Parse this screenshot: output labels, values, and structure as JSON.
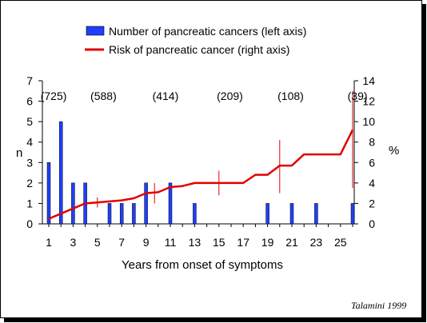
{
  "chart_data": {
    "type": "bar",
    "legend": {
      "position": "top-center",
      "bar_label": "Number of pancreatic cancers (left axis)",
      "line_label": "Risk of pancreatic cancer (right axis)"
    },
    "xlabel": "Years from onset of symptoms",
    "ylabel_left": "n",
    "ylabel_right": "%",
    "x_ticks": [
      "1",
      "3",
      "5",
      "7",
      "9",
      "11",
      "13",
      "15",
      "17",
      "19",
      "21",
      "23",
      "25"
    ],
    "ylim_left": [
      0,
      7
    ],
    "ylim_right": [
      0,
      14
    ],
    "y_ticks_left": [
      "0",
      "1",
      "2",
      "3",
      "4",
      "5",
      "6",
      "7"
    ],
    "y_ticks_right": [
      "0",
      "2",
      "4",
      "6",
      "8",
      "10",
      "12",
      "14"
    ],
    "grid": false,
    "bars": {
      "name": "Number of pancreatic cancers (left axis)",
      "color": "#1f3fff",
      "x": [
        1,
        2,
        3,
        4,
        6,
        7,
        8,
        9,
        11,
        13,
        19,
        21,
        23,
        26
      ],
      "values": [
        3,
        5,
        2,
        2,
        1,
        1,
        1,
        2,
        2,
        1,
        1,
        1,
        1,
        1
      ]
    },
    "line": {
      "name": "Risk of pancreatic cancer (right axis)",
      "color": "#e00000",
      "x": [
        1,
        2,
        3,
        4,
        5,
        6,
        7,
        8,
        9,
        10,
        11,
        12,
        13,
        14,
        15,
        16,
        17,
        18,
        19,
        20,
        21,
        22,
        23,
        24,
        25,
        26
      ],
      "values": [
        0.5,
        1.0,
        1.5,
        2.0,
        2.1,
        2.2,
        2.3,
        2.5,
        3.0,
        3.1,
        3.6,
        3.7,
        4.0,
        4.0,
        4.0,
        4.0,
        4.0,
        4.8,
        4.8,
        5.7,
        5.7,
        6.8,
        6.8,
        6.8,
        6.8,
        9.2
      ]
    },
    "error_bars": [
      {
        "x": 5,
        "low": 1.6,
        "high": 2.6
      },
      {
        "x": 9.7,
        "low": 2.0,
        "high": 4.0
      },
      {
        "x": 15,
        "low": 2.8,
        "high": 5.2
      },
      {
        "x": 20,
        "low": 3.0,
        "high": 8.2
      },
      {
        "x": 26,
        "low": 3.5,
        "high": 13.0
      }
    ],
    "annotations": [
      {
        "x": 1.4,
        "text": "(725)"
      },
      {
        "x": 5.5,
        "text": "(588)"
      },
      {
        "x": 10.6,
        "text": "(414)"
      },
      {
        "x": 15.9,
        "text": "(209)"
      },
      {
        "x": 20.9,
        "text": "(108)"
      },
      {
        "x": 26.4,
        "text": "(39)"
      }
    ]
  },
  "credit": "Talamini  1999"
}
